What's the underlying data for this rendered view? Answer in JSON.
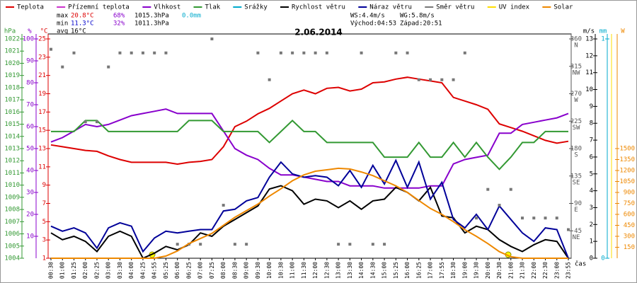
{
  "chart_data": {
    "type": "line",
    "title": "2.06.2014",
    "x_label": "čas",
    "categories": [
      "00:30",
      "01:00",
      "01:25",
      "02:00",
      "02:25",
      "03:00",
      "03:30",
      "04:00",
      "04:25",
      "04:55",
      "05:25",
      "06:00",
      "06:25",
      "07:00",
      "07:25",
      "08:00",
      "08:30",
      "09:00",
      "09:30",
      "10:00",
      "10:30",
      "11:00",
      "11:30",
      "12:00",
      "12:30",
      "13:00",
      "13:30",
      "14:00",
      "14:30",
      "15:00",
      "15:25",
      "16:00",
      "16:25",
      "17:00",
      "17:55",
      "18:30",
      "19:00",
      "19:30",
      "20:00",
      "20:30",
      "21:00",
      "21:30",
      "22:00",
      "22:30",
      "23:00",
      "23:55"
    ],
    "axes": {
      "press": {
        "label": "hPa",
        "color": "#339933",
        "ylim": [
          1004,
          1022
        ],
        "yticks": [
          1004,
          1005,
          1006,
          1007,
          1008,
          1009,
          1010,
          1011,
          1012,
          1013,
          1014,
          1015,
          1016,
          1017,
          1018,
          1019,
          1020,
          1021,
          1022
        ]
      },
      "hum": {
        "label": "%",
        "color": "#8800cc",
        "ylim": [
          0,
          100
        ],
        "yticks": [
          10,
          20,
          30,
          40,
          50,
          60,
          70,
          80,
          90,
          100
        ]
      },
      "temp": {
        "label": "°C",
        "color": "#dd0000",
        "ylim": [
          1,
          25
        ],
        "yticks": [
          1,
          3,
          5,
          7,
          9,
          11,
          13,
          15,
          17,
          19,
          21,
          23,
          25
        ]
      },
      "dir": {
        "color": "#555555",
        "ylim": [
          0,
          360
        ],
        "yticks": [
          45,
          90,
          135,
          180,
          225,
          270,
          315,
          360
        ],
        "names": [
          "NE",
          "E",
          "SE",
          "S",
          "SW",
          "W",
          "NW",
          "N"
        ]
      },
      "wind": {
        "label": "m/s",
        "color": "#000000",
        "ylim": [
          0,
          13
        ],
        "yticks": [
          0,
          1,
          2,
          3,
          4,
          5,
          6,
          7,
          8,
          9,
          10,
          11,
          12,
          13
        ]
      },
      "rain": {
        "label": "mm",
        "color": "#00aacc",
        "ylim": [
          0,
          1
        ],
        "yticks": [
          0,
          1
        ]
      },
      "solar": {
        "label": "W",
        "color": "#ee8800",
        "ylim": [
          0,
          3000
        ],
        "yticks": [
          150,
          300,
          450,
          600,
          750,
          900,
          1050,
          1200,
          1350,
          1500
        ]
      }
    },
    "series": [
      {
        "name": "Teplota",
        "color": "#dd0000",
        "axis": "temp",
        "values": [
          13.4,
          13.2,
          13.0,
          12.8,
          12.7,
          12.2,
          11.8,
          11.5,
          11.5,
          11.5,
          11.5,
          11.3,
          11.5,
          11.6,
          11.8,
          13.2,
          15.4,
          16.0,
          16.8,
          17.4,
          18.2,
          19.0,
          19.4,
          19.0,
          19.6,
          19.7,
          19.3,
          19.5,
          20.2,
          20.3,
          20.6,
          20.8,
          20.6,
          20.4,
          20.2,
          18.6,
          18.2,
          17.8,
          17.3,
          15.7,
          15.3,
          14.9,
          14.4,
          13.9,
          13.6,
          13.8
        ]
      },
      {
        "name": "Přízemní teplota",
        "color": "#cc33cc"
      },
      {
        "name": "Vlhkost",
        "color": "#8800cc",
        "axis": "hum",
        "values": [
          53,
          55,
          58,
          61,
          60,
          61,
          63,
          65,
          66,
          67,
          68,
          66,
          66,
          66,
          66,
          58,
          50,
          47,
          45,
          41,
          38,
          38,
          37,
          36,
          35,
          35,
          33,
          33,
          33,
          32,
          32,
          32,
          32,
          33,
          33,
          43,
          45,
          46,
          47,
          57,
          57,
          61,
          62,
          63,
          64,
          66
        ]
      },
      {
        "name": "Tlak",
        "color": "#339933",
        "axis": "press",
        "values": [
          1014.4,
          1014.4,
          1014.4,
          1015.3,
          1015.3,
          1014.4,
          1014.4,
          1014.4,
          1014.4,
          1014.4,
          1014.4,
          1014.4,
          1015.3,
          1015.3,
          1015.3,
          1014.4,
          1014.4,
          1014.4,
          1014.4,
          1013.5,
          1014.4,
          1015.3,
          1014.4,
          1014.4,
          1013.5,
          1013.5,
          1013.5,
          1013.5,
          1013.5,
          1012.3,
          1012.3,
          1012.3,
          1013.5,
          1012.3,
          1012.3,
          1013.5,
          1012.3,
          1013.5,
          1012.3,
          1011.3,
          1012.3,
          1013.5,
          1013.5,
          1014.4,
          1014.4,
          1014.4
        ]
      },
      {
        "name": "Srážky",
        "color": "#00aacc"
      },
      {
        "name": "Rychlost větru",
        "color": "#000000",
        "axis": "wind",
        "values": [
          1.5,
          1.1,
          1.3,
          1.0,
          0.4,
          1.3,
          1.6,
          1.3,
          0,
          0.3,
          0.7,
          0.5,
          0.8,
          1.5,
          1.3,
          1.9,
          2.3,
          2.7,
          3.1,
          4.1,
          4.3,
          4.0,
          3.2,
          3.5,
          3.4,
          3.0,
          3.4,
          2.9,
          3.4,
          3.5,
          4.2,
          3.9,
          3.4,
          4.2,
          2.5,
          2.4,
          1.5,
          1.9,
          1.7,
          1.1,
          0.7,
          0.4,
          0.8,
          1.1,
          1.0,
          0
        ]
      },
      {
        "name": "Náraz větru",
        "color": "#000099",
        "axis": "wind",
        "values": [
          1.9,
          1.6,
          1.8,
          1.5,
          0.6,
          1.8,
          2.1,
          1.9,
          0.4,
          1.2,
          1.6,
          1.5,
          1.6,
          1.7,
          1.7,
          2.8,
          2.9,
          3.4,
          3.6,
          4.8,
          5.7,
          5.0,
          4.8,
          4.9,
          4.8,
          4.3,
          5.2,
          4.2,
          5.5,
          4.4,
          5.8,
          4.2,
          5.7,
          3.5,
          4.5,
          2.3,
          1.8,
          2.6,
          1.7,
          3.1,
          2.3,
          1.5,
          1.0,
          1.8,
          1.7,
          0
        ]
      },
      {
        "name": "Směr větru",
        "color": "#777777",
        "axis": "dir",
        "marker": "square",
        "values": [
          343,
          314,
          337,
          224,
          224,
          314,
          337,
          337,
          337,
          337,
          337,
          23,
          23,
          23,
          360,
          87,
          23,
          23,
          337,
          293,
          337,
          337,
          337,
          337,
          337,
          23,
          23,
          337,
          23,
          23,
          337,
          337,
          293,
          293,
          293,
          293,
          337,
          66,
          113,
          87,
          113,
          66,
          66,
          66,
          66,
          47
        ]
      },
      {
        "name": "UV index",
        "color": "#ffdd00"
      },
      {
        "name": "Solar",
        "color": "#ee8800",
        "axis": "solar",
        "values": [
          0,
          0,
          0,
          0,
          0,
          0,
          0,
          0,
          0,
          0,
          30,
          100,
          200,
          270,
          340,
          450,
          560,
          650,
          740,
          850,
          950,
          1060,
          1140,
          1190,
          1210,
          1230,
          1220,
          1180,
          1130,
          1060,
          990,
          900,
          790,
          680,
          600,
          500,
          390,
          300,
          200,
          90,
          20,
          0,
          0,
          0,
          0,
          0
        ]
      }
    ],
    "stats_rows": [
      [
        "max",
        "20.8°C",
        "68%",
        "1015.3hPa",
        "0.0mm"
      ],
      [
        "min",
        "11.3°C",
        "32%",
        "1011.3hPa"
      ],
      [
        "avg",
        "16°C"
      ]
    ],
    "wind_sun": [
      [
        "WS:4.4m/s",
        "WG:5.8m/s"
      ],
      [
        "Východ:04:53",
        "Západ:20:51"
      ]
    ]
  }
}
